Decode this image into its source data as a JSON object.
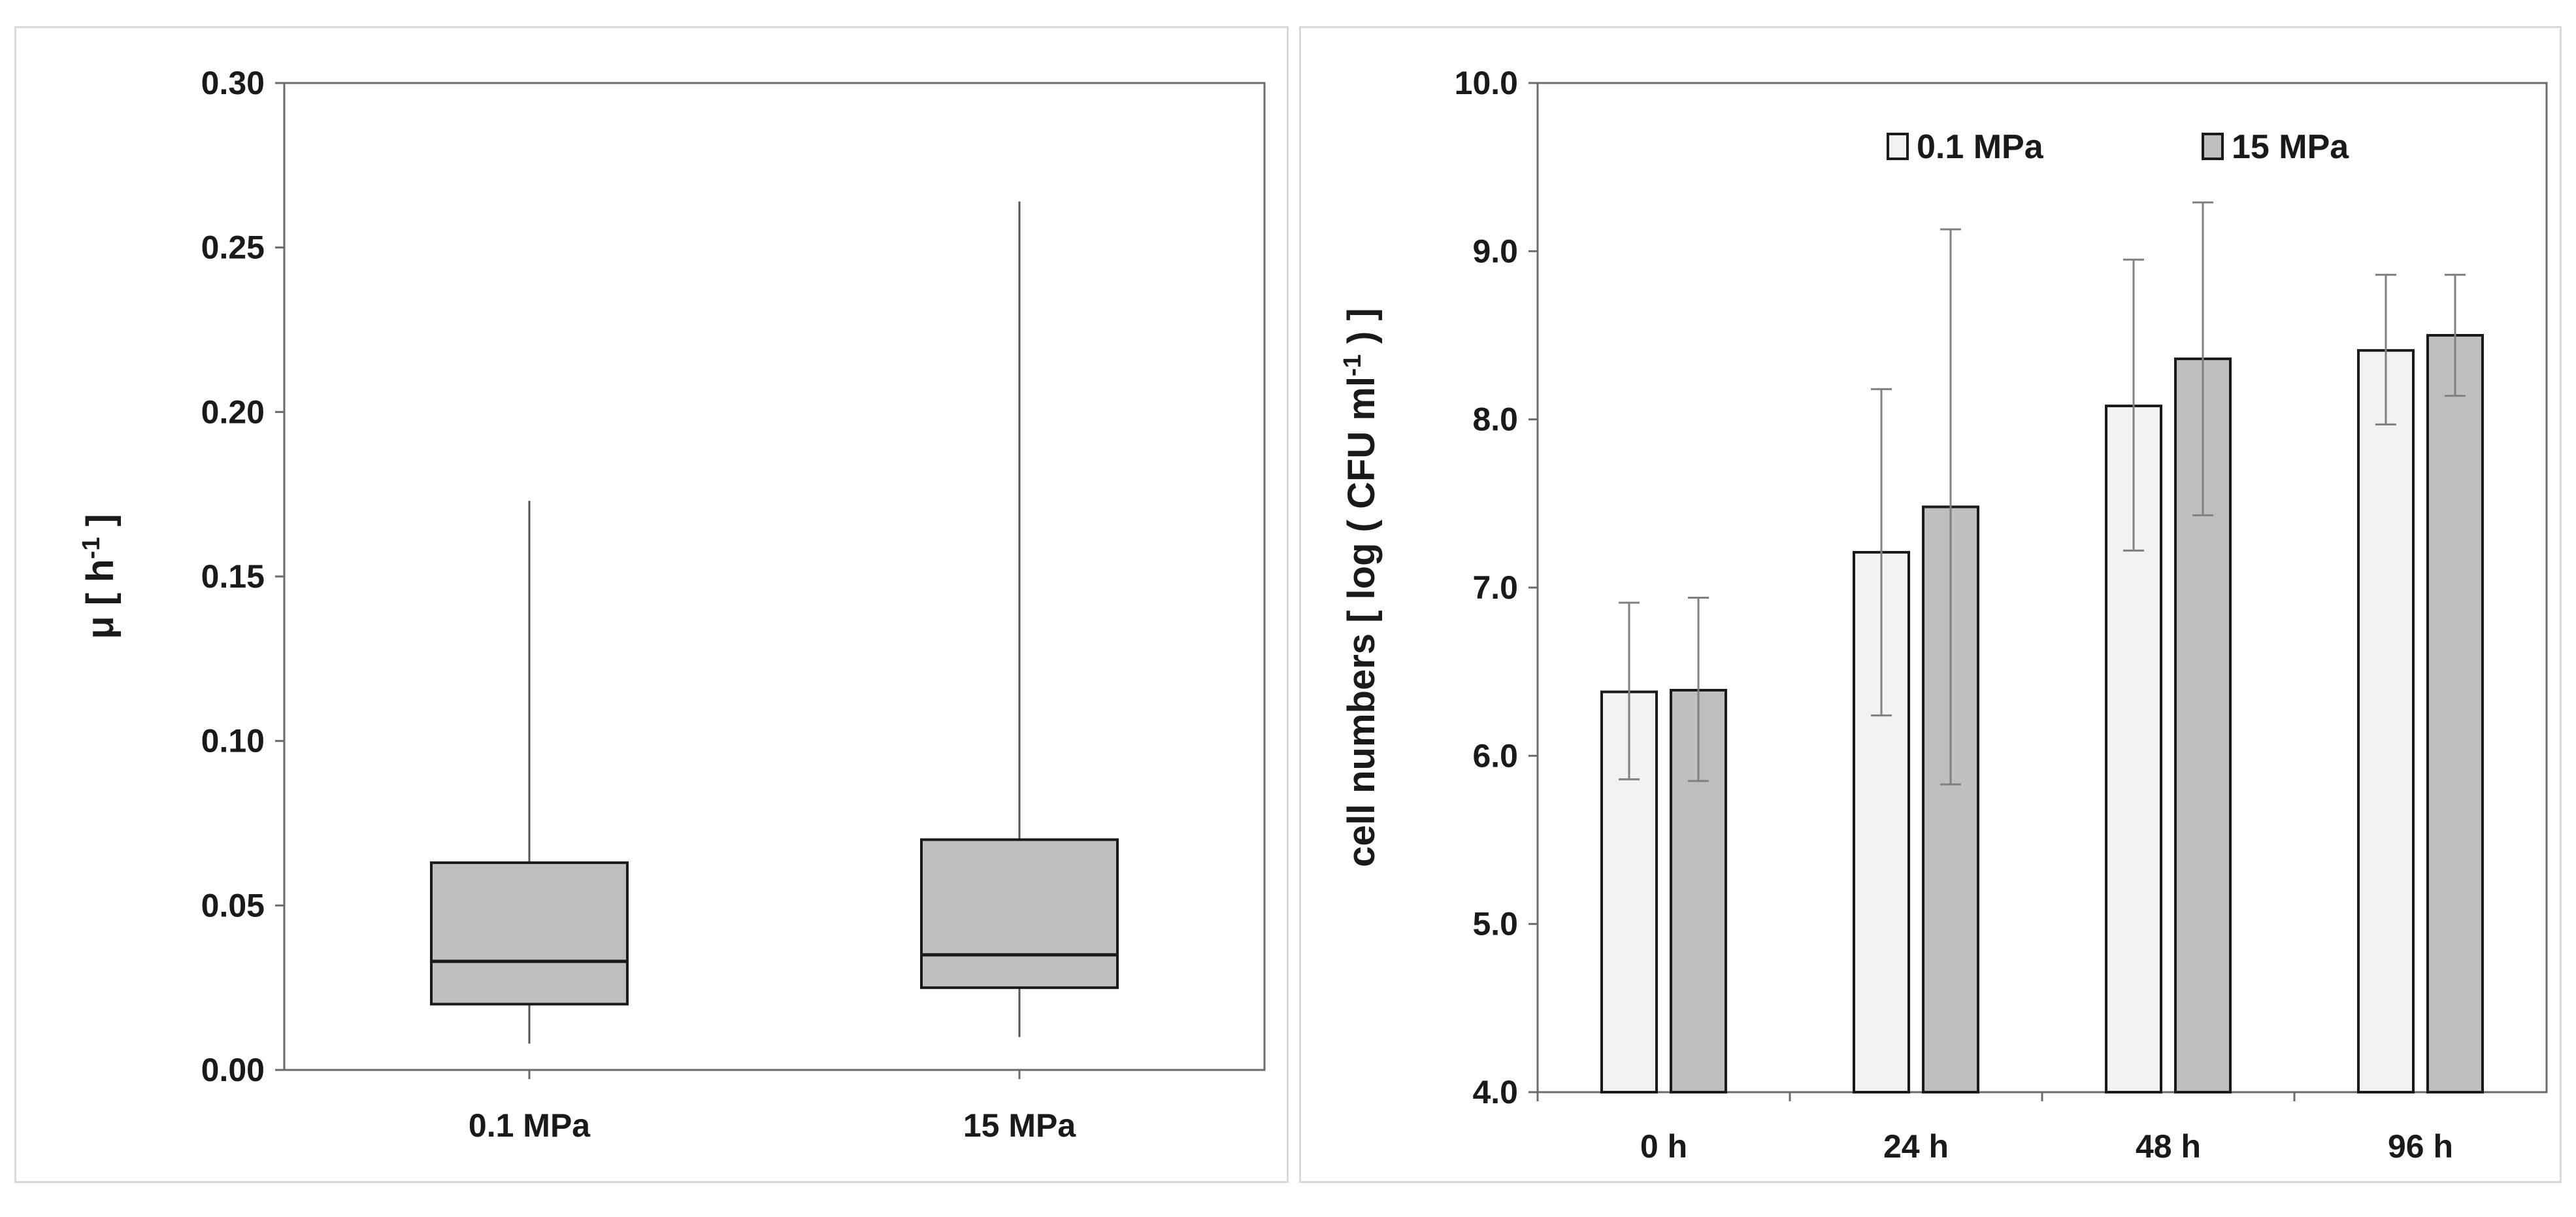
{
  "chart_data": [
    {
      "type": "box",
      "ylabel": "μ [ h",
      "ylabel_sup": "-1",
      "ylabel_end": " ]",
      "ylim": [
        0,
        0.3
      ],
      "yticks": [
        "0.00",
        "0.05",
        "0.10",
        "0.15",
        "0.20",
        "0.25",
        "0.30"
      ],
      "categories": [
        "0.1 MPa",
        "15 MPa"
      ],
      "boxes": [
        {
          "category": "0.1 MPa",
          "whisker_low": 0.008,
          "q1": 0.02,
          "median": 0.033,
          "q3": 0.063,
          "whisker_high": 0.173
        },
        {
          "category": "15 MPa",
          "whisker_low": 0.01,
          "q1": 0.025,
          "median": 0.035,
          "q3": 0.07,
          "whisker_high": 0.264
        }
      ],
      "box_color": "#bfbfbf"
    },
    {
      "type": "bar",
      "ylabel": "cell numbers [ log ( CFU ml",
      "ylabel_sup": "-1",
      "ylabel_end": " ) ]",
      "ylim": [
        4.0,
        10.0
      ],
      "yticks": [
        "4.0",
        "5.0",
        "6.0",
        "7.0",
        "8.0",
        "9.0",
        "10.0"
      ],
      "categories": [
        "0 h",
        "24 h",
        "48 h",
        "96 h"
      ],
      "legend_position": "top-right",
      "series": [
        {
          "name": "0.1  MPa",
          "color": "#f2f2f2",
          "values": [
            6.38,
            7.21,
            8.08,
            8.41
          ],
          "err_low": [
            5.86,
            6.24,
            7.22,
            7.97
          ],
          "err_high": [
            6.91,
            8.18,
            8.95,
            8.86
          ]
        },
        {
          "name": "15 MPa",
          "color": "#bfbfbf",
          "values": [
            6.39,
            7.48,
            8.36,
            8.5
          ],
          "err_low": [
            5.85,
            5.83,
            7.43,
            8.14
          ],
          "err_high": [
            6.94,
            9.13,
            9.29,
            8.86
          ]
        }
      ]
    }
  ]
}
